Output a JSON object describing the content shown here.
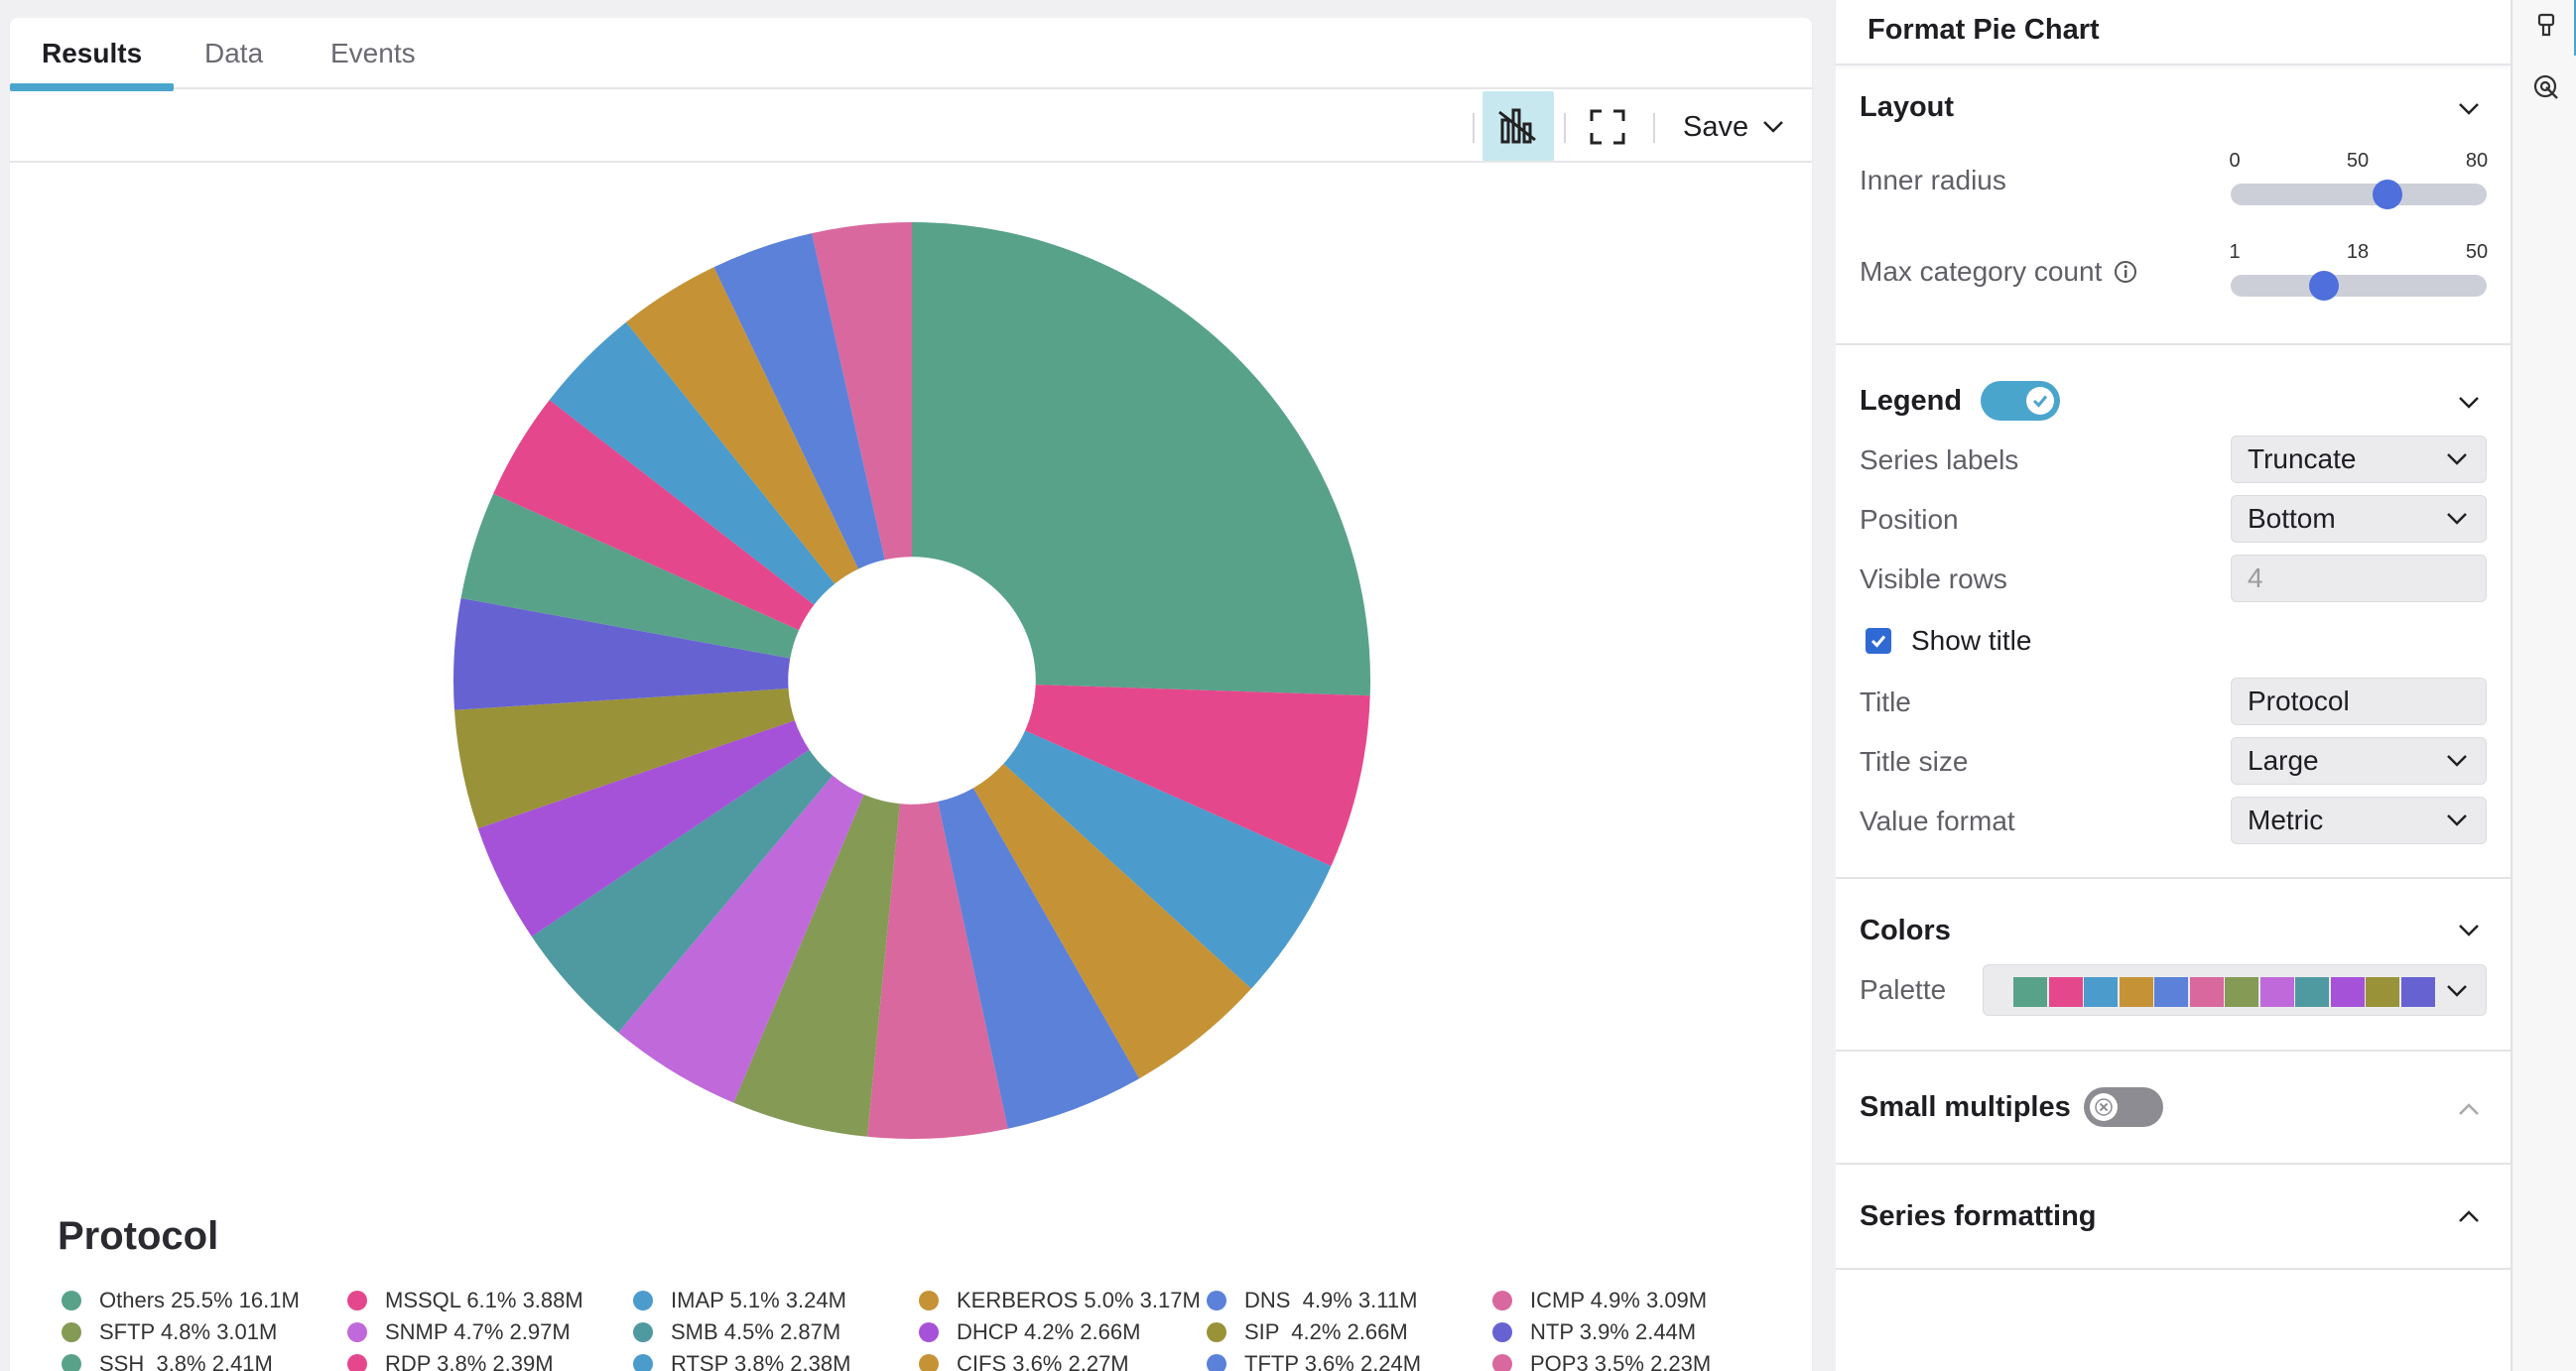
{
  "tabs": [
    {
      "label": "Results",
      "active": true
    },
    {
      "label": "Data",
      "active": false
    },
    {
      "label": "Events",
      "active": false
    }
  ],
  "toolbar": {
    "chart_icon": "bar-chart-icon",
    "fullscreen_icon": "fullscreen-icon",
    "save_label": "Save"
  },
  "chart_data": {
    "type": "pie",
    "title": "Protocol",
    "inner_radius": 50,
    "slices": [
      {
        "label": "Others",
        "percent": 25.5,
        "value": "16.1M",
        "color": "#58a28a"
      },
      {
        "label": "MSSQL",
        "percent": 6.1,
        "value": "3.88M",
        "color": "#e5478c"
      },
      {
        "label": "IMAP",
        "percent": 5.1,
        "value": "3.24M",
        "color": "#4b9bcd"
      },
      {
        "label": "KERBEROS",
        "percent": 5.0,
        "value": "3.17M",
        "color": "#c59336"
      },
      {
        "label": "DNS",
        "percent": 4.9,
        "value": "3.11M",
        "color": "#5b81d9"
      },
      {
        "label": "ICMP",
        "percent": 4.9,
        "value": "3.09M",
        "color": "#d9689e"
      },
      {
        "label": "SFTP",
        "percent": 4.8,
        "value": "3.01M",
        "color": "#859a55"
      },
      {
        "label": "SNMP",
        "percent": 4.7,
        "value": "2.97M",
        "color": "#c069db"
      },
      {
        "label": "SMB",
        "percent": 4.5,
        "value": "2.87M",
        "color": "#4e9aa0"
      },
      {
        "label": "DHCP",
        "percent": 4.2,
        "value": "2.66M",
        "color": "#a552d8"
      },
      {
        "label": "SIP",
        "percent": 4.2,
        "value": "2.66M",
        "color": "#999238"
      },
      {
        "label": "NTP",
        "percent": 3.9,
        "value": "2.44M",
        "color": "#6762d2"
      },
      {
        "label": "SSH",
        "percent": 3.8,
        "value": "2.41M",
        "color": "#58a28a"
      },
      {
        "label": "RDP",
        "percent": 3.8,
        "value": "2.39M",
        "color": "#e5478c"
      },
      {
        "label": "RTSP",
        "percent": 3.8,
        "value": "2.38M",
        "color": "#4b9bcd"
      },
      {
        "label": "CIFS",
        "percent": 3.6,
        "value": "2.27M",
        "color": "#c59336"
      },
      {
        "label": "TFTP",
        "percent": 3.6,
        "value": "2.24M",
        "color": "#5b81d9"
      },
      {
        "label": "POP3",
        "percent": 3.5,
        "value": "2.23M",
        "color": "#d9689e"
      }
    ]
  },
  "legend_rows": [
    [
      "Others 25.5% 16.1M",
      "MSSQL 6.1% 3.88M",
      "IMAP 5.1% 3.24M",
      "KERBEROS 5.0% 3.17M",
      "DNS  4.9% 3.11M",
      "ICMP 4.9% 3.09M"
    ],
    [
      "SFTP 4.8% 3.01M",
      "SNMP 4.7% 2.97M",
      "SMB 4.5% 2.87M",
      "DHCP 4.2% 2.66M",
      "SIP  4.2% 2.66M",
      "NTP 3.9% 2.44M"
    ],
    [
      "SSH  3.8% 2.41M",
      "RDP 3.8% 2.39M",
      "RTSP 3.8% 2.38M",
      "CIFS 3.6% 2.27M",
      "TFTP 3.6% 2.24M",
      "POP3 3.5% 2.23M"
    ]
  ],
  "panel": {
    "title": "Format Pie Chart",
    "layout": {
      "title": "Layout",
      "inner_radius": {
        "label": "Inner radius",
        "min": "0",
        "mid": "50",
        "max": "80",
        "value": 50,
        "min_n": 0,
        "max_n": 80
      },
      "max_category_count": {
        "label": "Max category count",
        "min": "1",
        "mid": "18",
        "max": "50",
        "value": 18,
        "min_n": 1,
        "max_n": 50
      }
    },
    "legend": {
      "title": "Legend",
      "enabled": true,
      "series_labels": {
        "label": "Series labels",
        "value": "Truncate"
      },
      "position": {
        "label": "Position",
        "value": "Bottom"
      },
      "visible_rows": {
        "label": "Visible rows",
        "value": "4"
      },
      "show_title": {
        "label": "Show title",
        "checked": true
      },
      "title_field": {
        "label": "Title",
        "value": "Protocol"
      },
      "title_size": {
        "label": "Title size",
        "value": "Large"
      },
      "value_format": {
        "label": "Value format",
        "value": "Metric"
      }
    },
    "colors": {
      "title": "Colors",
      "palette_label": "Palette",
      "palette": [
        "#58a28a",
        "#e5478c",
        "#4b9bcd",
        "#c59336",
        "#5b81d9",
        "#d9689e",
        "#859a55",
        "#c069db",
        "#4e9aa0",
        "#a552d8",
        "#999238",
        "#6762d2"
      ]
    },
    "small_multiples": {
      "title": "Small multiples",
      "enabled": false
    },
    "series_formatting": {
      "title": "Series formatting"
    }
  }
}
